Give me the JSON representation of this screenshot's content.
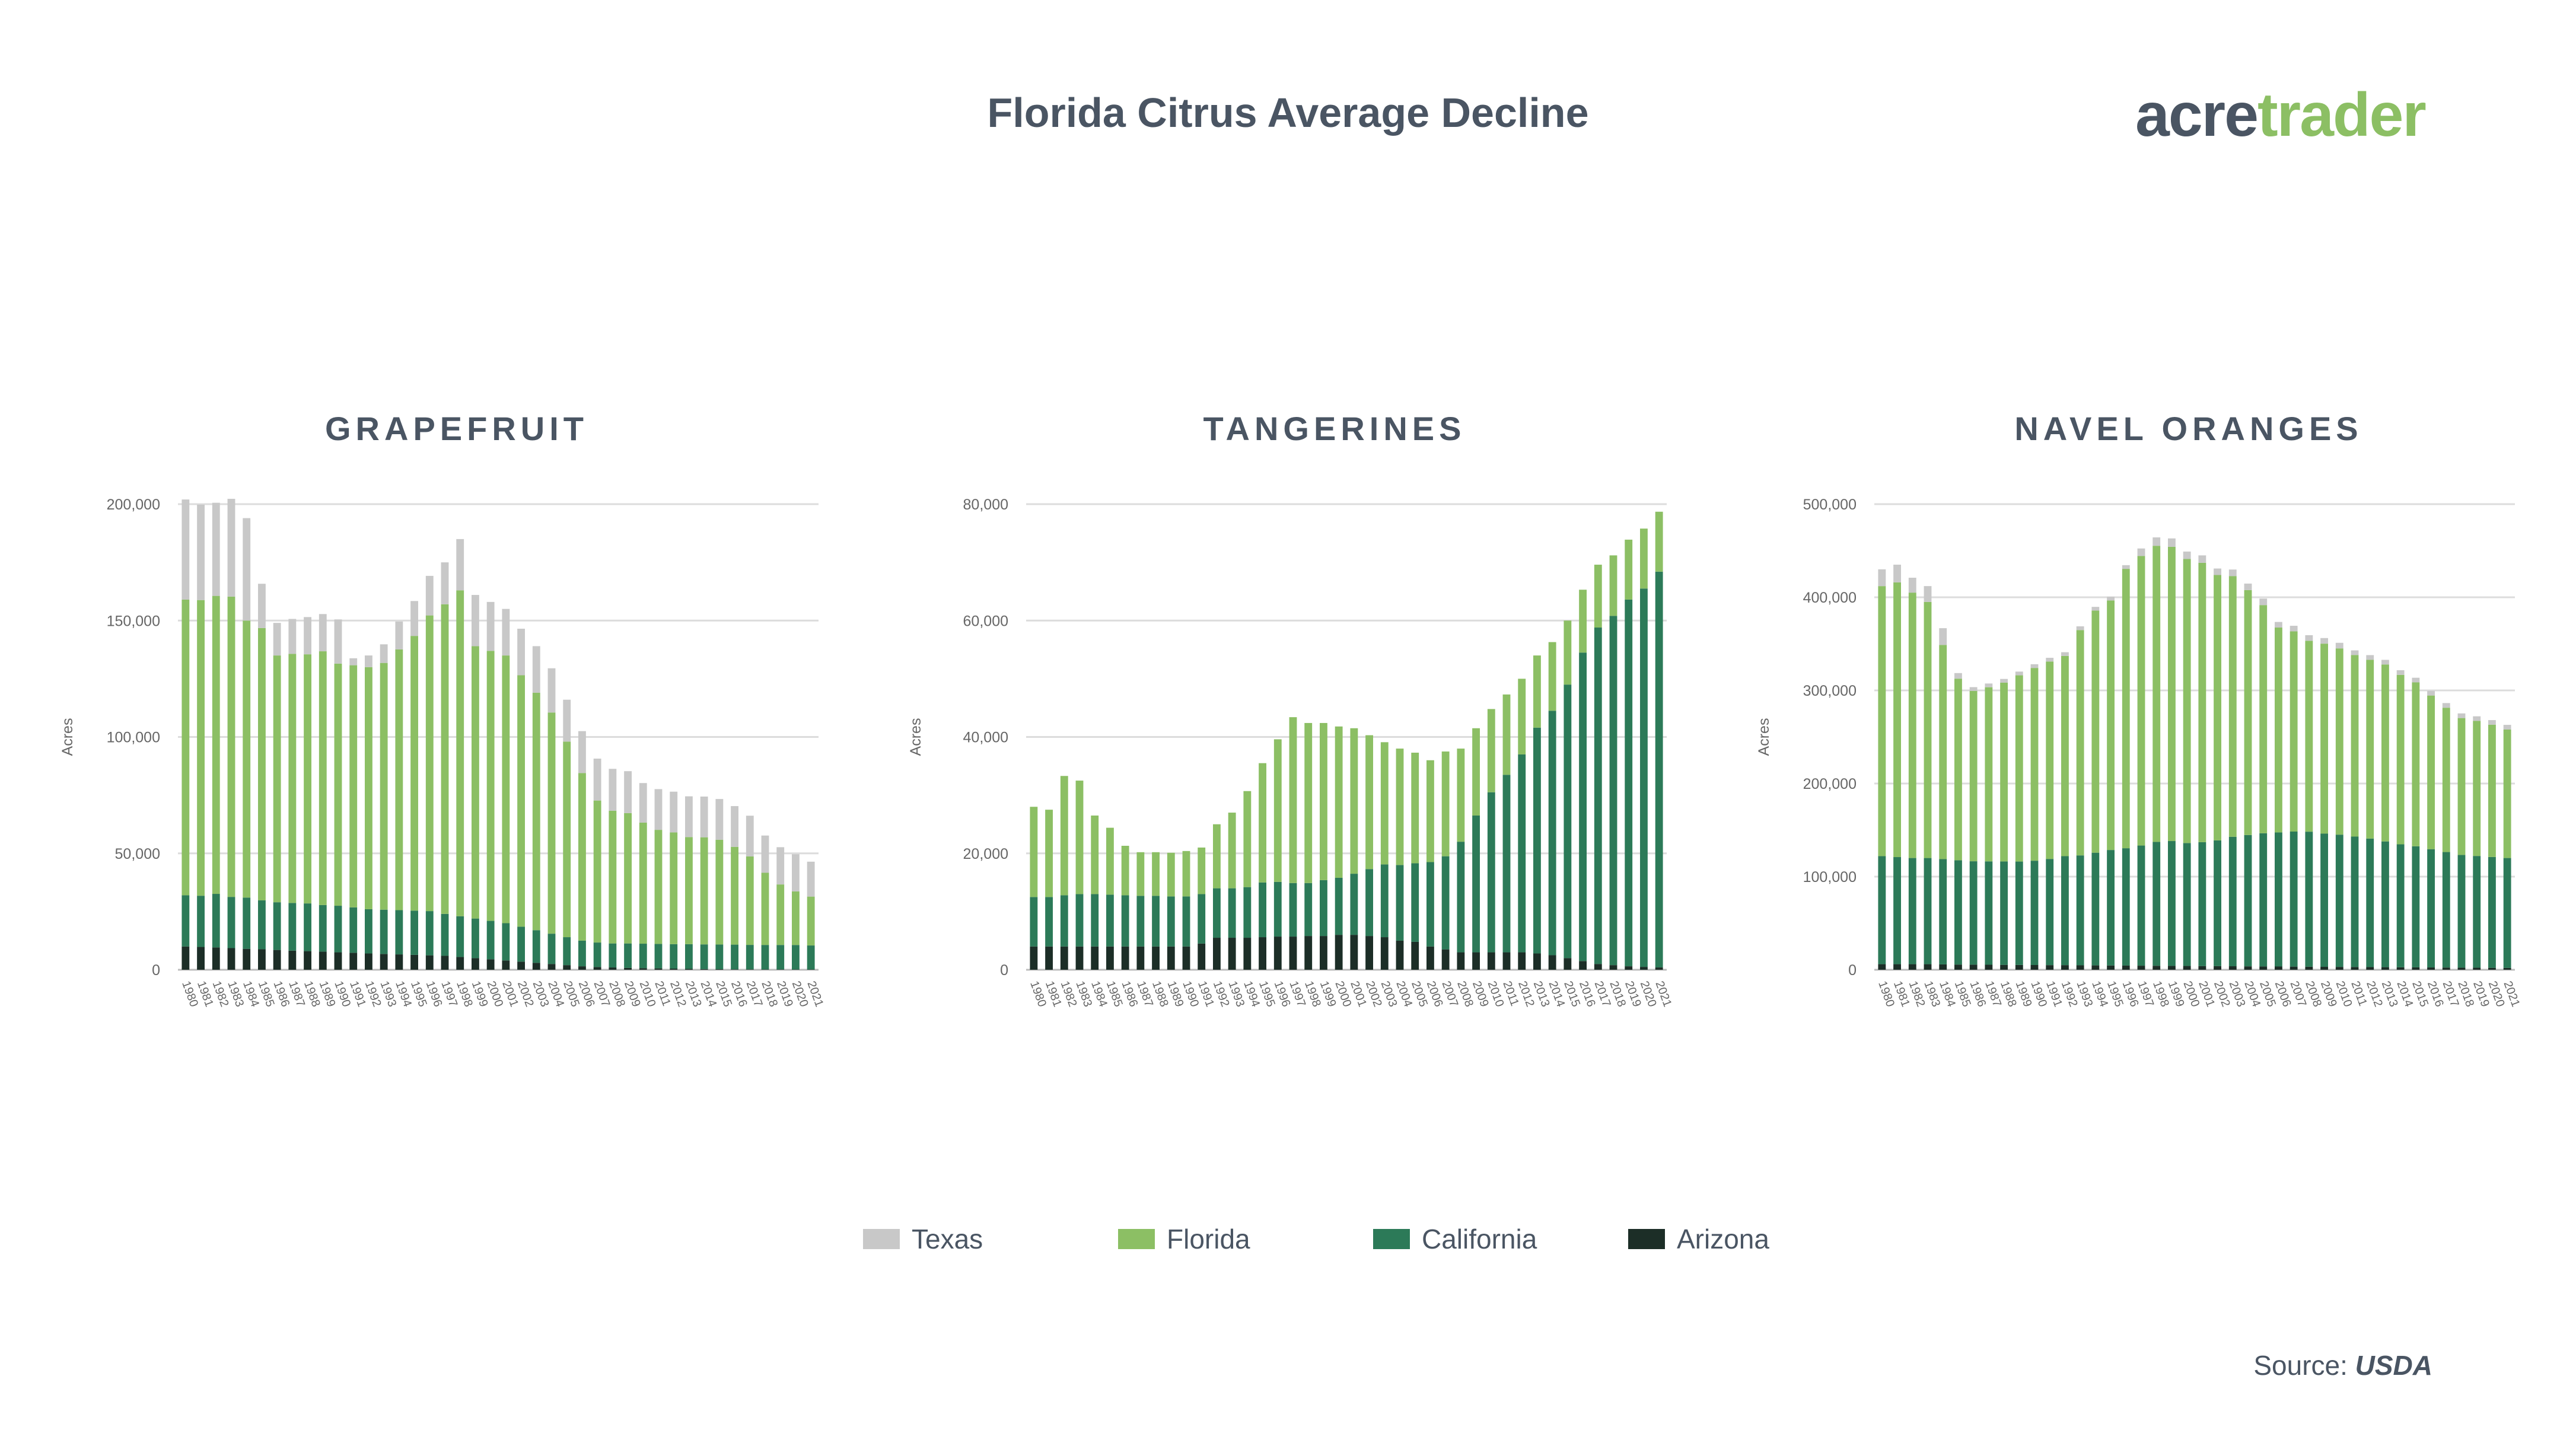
{
  "title": "Florida Citrus Average Decline",
  "logo": {
    "part1": "acre",
    "part2": "trader"
  },
  "legend": [
    {
      "label": "Texas",
      "color": "#c8c8c8"
    },
    {
      "label": "Florida",
      "color": "#8cbf64"
    },
    {
      "label": "California",
      "color": "#2c7a58"
    },
    {
      "label": "Arizona",
      "color": "#1c2e27"
    }
  ],
  "source": {
    "label": "Source:",
    "value": "USDA"
  },
  "chart_data": [
    {
      "type": "bar",
      "stacked": true,
      "title": "GRAPEFRUIT",
      "ylabel": "Acres",
      "ylim": [
        0,
        200000
      ],
      "yticks": [
        0,
        50000,
        100000,
        150000,
        200000
      ],
      "ytick_labels": [
        "0",
        "50,000",
        "100,000",
        "150,000",
        "200,000"
      ],
      "categories": [
        "1980",
        "1981",
        "1982",
        "1983",
        "1984",
        "1985",
        "1986",
        "1987",
        "1988",
        "1989",
        "1990",
        "1991",
        "1992",
        "1993",
        "1994",
        "1995",
        "1996",
        "1997",
        "1998",
        "1999",
        "2000",
        "2001",
        "2002",
        "2003",
        "2004",
        "2005",
        "2006",
        "2007",
        "2008",
        "2009",
        "2010",
        "2011",
        "2012",
        "2013",
        "2014",
        "2015",
        "2016",
        "2017",
        "2018",
        "2019",
        "2020",
        "2021"
      ],
      "series": [
        {
          "name": "Arizona",
          "color": "#1c2e27",
          "values": [
            10000,
            9800,
            9600,
            9300,
            9000,
            8800,
            8500,
            8200,
            8000,
            7800,
            7500,
            7300,
            7000,
            6800,
            6600,
            6400,
            6200,
            6000,
            5500,
            5000,
            4500,
            4000,
            3500,
            3000,
            2500,
            2000,
            1500,
            1200,
            1000,
            800,
            700,
            600,
            500,
            400,
            300,
            250,
            200,
            180,
            160,
            150,
            140,
            130
          ]
        },
        {
          "name": "California",
          "color": "#2c7a58",
          "values": [
            22000,
            22000,
            23000,
            22000,
            22000,
            21000,
            20500,
            20500,
            20500,
            20000,
            20000,
            19500,
            19000,
            19000,
            19000,
            19000,
            19000,
            18000,
            17500,
            17000,
            16500,
            16000,
            15000,
            14000,
            13000,
            12000,
            11000,
            10500,
            10300,
            10500,
            10500,
            10500,
            10500,
            10600,
            10600,
            10600,
            10600,
            10500,
            10500,
            10500,
            10500,
            10300
          ]
        },
        {
          "name": "Florida",
          "color": "#8cbf64",
          "values": [
            127000,
            127000,
            128000,
            129000,
            119000,
            117000,
            106000,
            107000,
            107000,
            109000,
            104000,
            104000,
            104000,
            106000,
            112000,
            118000,
            127000,
            133000,
            140000,
            117000,
            116000,
            115000,
            108000,
            102000,
            95000,
            84000,
            72000,
            61000,
            57000,
            56000,
            52000,
            49000,
            48000,
            46000,
            46000,
            45000,
            42000,
            38000,
            31000,
            26000,
            23000,
            21000
          ]
        },
        {
          "name": "Texas",
          "color": "#c8c8c8",
          "values": [
            43000,
            41000,
            40000,
            42000,
            44000,
            19000,
            14000,
            15000,
            16000,
            16000,
            19000,
            3000,
            5000,
            8000,
            12000,
            15000,
            17000,
            18000,
            22000,
            22000,
            21000,
            20000,
            20000,
            20000,
            19000,
            18000,
            18000,
            18000,
            18000,
            18000,
            17000,
            17500,
            17500,
            17500,
            17500,
            17500,
            17500,
            17500,
            16000,
            16000,
            16000,
            15000
          ]
        }
      ]
    },
    {
      "type": "bar",
      "stacked": true,
      "title": "TANGERINES",
      "ylabel": "Acres",
      "ylim": [
        0,
        80000
      ],
      "yticks": [
        0,
        20000,
        40000,
        60000,
        80000
      ],
      "ytick_labels": [
        "0",
        "20,000",
        "40,000",
        "60,000",
        "80,000"
      ],
      "categories": [
        "1980",
        "1981",
        "1982",
        "1983",
        "1984",
        "1985",
        "1986",
        "1987",
        "1988",
        "1989",
        "1990",
        "1991",
        "1992",
        "1993",
        "1994",
        "1995",
        "1996",
        "1997",
        "1998",
        "1999",
        "2000",
        "2001",
        "2002",
        "2003",
        "2004",
        "2005",
        "2006",
        "2007",
        "2008",
        "2009",
        "2010",
        "2011",
        "2012",
        "2013",
        "2014",
        "2015",
        "2016",
        "2017",
        "2018",
        "2019",
        "2020",
        "2021"
      ],
      "series": [
        {
          "name": "Arizona",
          "color": "#1c2e27",
          "values": [
            4000,
            4000,
            4000,
            4000,
            4000,
            4000,
            4000,
            4000,
            4000,
            4000,
            4000,
            4500,
            5500,
            5500,
            5500,
            5600,
            5700,
            5700,
            5800,
            5800,
            6000,
            6000,
            5800,
            5600,
            5000,
            4800,
            4000,
            3500,
            3000,
            3000,
            3000,
            3000,
            3000,
            2800,
            2500,
            2000,
            1500,
            1000,
            800,
            600,
            500,
            400
          ]
        },
        {
          "name": "California",
          "color": "#2c7a58",
          "values": [
            8500,
            8500,
            8800,
            9000,
            9000,
            8900,
            8800,
            8700,
            8700,
            8600,
            8600,
            8500,
            8500,
            8500,
            8700,
            9400,
            9400,
            9200,
            9100,
            9600,
            9800,
            10500,
            11500,
            12500,
            13000,
            13500,
            14500,
            16000,
            19000,
            23500,
            27500,
            30500,
            34000,
            38800,
            42000,
            47000,
            53000,
            57800,
            60000,
            63000,
            65000,
            68000
          ]
        },
        {
          "name": "Florida",
          "color": "#8cbf64",
          "values": [
            15500,
            15000,
            20500,
            19500,
            13500,
            11500,
            8500,
            7500,
            7500,
            7500,
            7800,
            8000,
            11000,
            13000,
            16500,
            20500,
            24500,
            28500,
            27500,
            27000,
            26000,
            25000,
            23000,
            21000,
            20000,
            19000,
            17500,
            18000,
            16000,
            15000,
            14300,
            13800,
            13000,
            12400,
            11800,
            11000,
            10800,
            10800,
            10400,
            10300,
            10300,
            10300
          ]
        },
        {
          "name": "Texas",
          "color": "#c8c8c8",
          "values": [
            0,
            0,
            0,
            0,
            0,
            0,
            0,
            0,
            0,
            0,
            0,
            0,
            0,
            0,
            0,
            0,
            0,
            0,
            0,
            0,
            0,
            0,
            0,
            0,
            0,
            0,
            0,
            0,
            0,
            0,
            0,
            0,
            0,
            0,
            0,
            0,
            0,
            0,
            0,
            0,
            0,
            0
          ]
        }
      ]
    },
    {
      "type": "bar",
      "stacked": true,
      "title": "NAVEL ORANGES",
      "ylabel": "Acres",
      "ylim": [
        0,
        500000
      ],
      "yticks": [
        0,
        100000,
        200000,
        300000,
        400000,
        500000
      ],
      "ytick_labels": [
        "0",
        "100,000",
        "200,000",
        "300,000",
        "400,000",
        "500,000"
      ],
      "categories": [
        "1980",
        "1981",
        "1982",
        "1983",
        "1984",
        "1985",
        "1986",
        "1987",
        "1988",
        "1989",
        "1990",
        "1991",
        "1992",
        "1993",
        "1994",
        "1995",
        "1996",
        "1997",
        "1998",
        "1999",
        "2000",
        "2001",
        "2002",
        "2003",
        "2004",
        "2005",
        "2006",
        "2007",
        "2008",
        "2009",
        "2010",
        "2011",
        "2012",
        "2013",
        "2014",
        "2015",
        "2016",
        "2017",
        "2018",
        "2019",
        "2020",
        "2021"
      ],
      "series": [
        {
          "name": "Arizona",
          "color": "#1c2e27",
          "values": [
            6000,
            6000,
            6000,
            6000,
            5800,
            5600,
            5500,
            5400,
            5300,
            5200,
            5100,
            5000,
            5000,
            4800,
            4700,
            4600,
            4500,
            4400,
            4300,
            4200,
            4100,
            4000,
            3900,
            3800,
            3700,
            3600,
            3500,
            3400,
            3300,
            3200,
            3100,
            3000,
            2900,
            2800,
            2700,
            2600,
            2500,
            2400,
            2300,
            2200,
            2100,
            2000
          ]
        },
        {
          "name": "California",
          "color": "#2c7a58",
          "values": [
            116000,
            115000,
            114000,
            114000,
            113000,
            112000,
            111000,
            111000,
            111000,
            111000,
            112000,
            114000,
            117000,
            118000,
            121000,
            124000,
            126000,
            129000,
            133000,
            134000,
            132000,
            133000,
            135000,
            139000,
            141000,
            143000,
            144000,
            145000,
            145000,
            143000,
            142000,
            140000,
            138000,
            135000,
            132000,
            130000,
            127000,
            124000,
            121000,
            120000,
            119000,
            118000
          ]
        },
        {
          "name": "Florida",
          "color": "#8cbf64",
          "values": [
            290000,
            295000,
            285000,
            275000,
            230000,
            195000,
            183000,
            187000,
            192000,
            200000,
            207000,
            212000,
            215000,
            242000,
            260000,
            268000,
            300000,
            311000,
            318000,
            316000,
            305000,
            300000,
            285000,
            280000,
            263000,
            245000,
            220000,
            215000,
            205000,
            204000,
            200000,
            195000,
            192000,
            190000,
            182000,
            176000,
            165000,
            155000,
            147000,
            145000,
            142000,
            138000
          ]
        },
        {
          "name": "Texas",
          "color": "#c8c8c8",
          "values": [
            18000,
            19000,
            16000,
            17000,
            18000,
            6000,
            4000,
            4000,
            4000,
            4000,
            4000,
            4000,
            4000,
            4000,
            4000,
            4000,
            4000,
            8000,
            9000,
            9000,
            8000,
            8000,
            7000,
            7000,
            7000,
            7000,
            6000,
            6000,
            6000,
            6000,
            6000,
            5000,
            5000,
            5000,
            5000,
            5000,
            5000,
            5000,
            5000,
            5000,
            5000,
            5000
          ]
        }
      ]
    }
  ]
}
